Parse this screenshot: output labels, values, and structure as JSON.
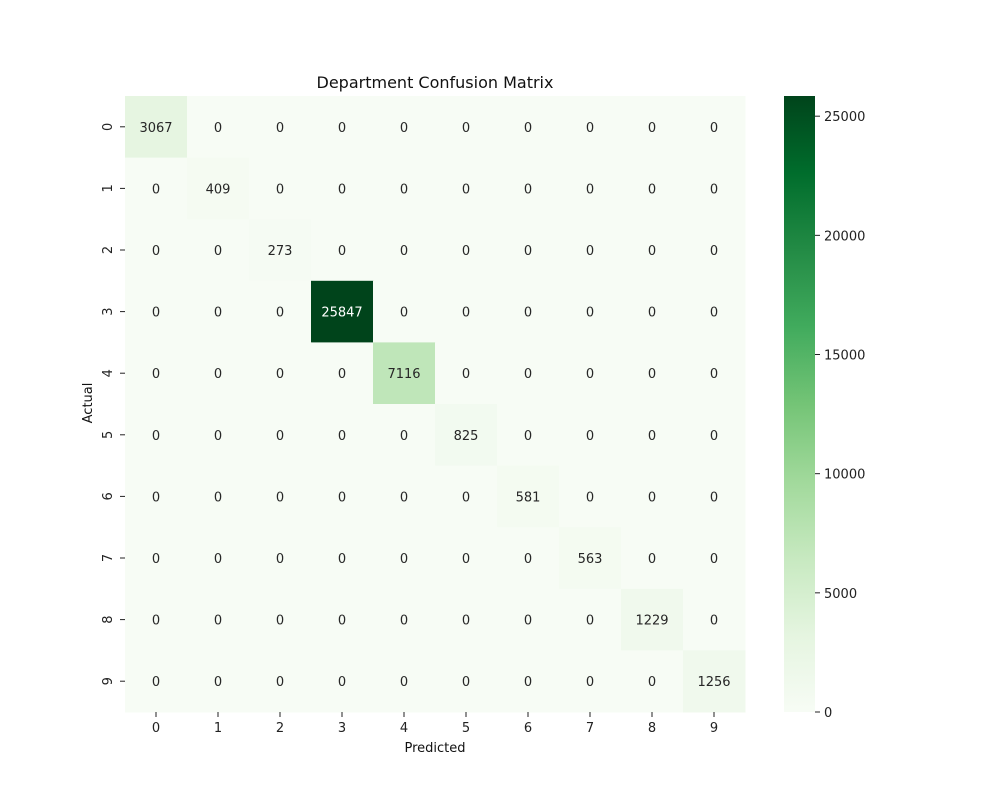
{
  "chart_data": {
    "type": "heatmap",
    "title": "Department Confusion Matrix",
    "xlabel": "Predicted",
    "ylabel": "Actual",
    "x_categories": [
      "0",
      "1",
      "2",
      "3",
      "4",
      "5",
      "6",
      "7",
      "8",
      "9"
    ],
    "y_categories": [
      "0",
      "1",
      "2",
      "3",
      "4",
      "5",
      "6",
      "7",
      "8",
      "9"
    ],
    "matrix": [
      [
        3067,
        0,
        0,
        0,
        0,
        0,
        0,
        0,
        0,
        0
      ],
      [
        0,
        409,
        0,
        0,
        0,
        0,
        0,
        0,
        0,
        0
      ],
      [
        0,
        0,
        273,
        0,
        0,
        0,
        0,
        0,
        0,
        0
      ],
      [
        0,
        0,
        0,
        25847,
        0,
        0,
        0,
        0,
        0,
        0
      ],
      [
        0,
        0,
        0,
        0,
        7116,
        0,
        0,
        0,
        0,
        0
      ],
      [
        0,
        0,
        0,
        0,
        0,
        825,
        0,
        0,
        0,
        0
      ],
      [
        0,
        0,
        0,
        0,
        0,
        0,
        581,
        0,
        0,
        0
      ],
      [
        0,
        0,
        0,
        0,
        0,
        0,
        0,
        563,
        0,
        0
      ],
      [
        0,
        0,
        0,
        0,
        0,
        0,
        0,
        0,
        1229,
        0
      ],
      [
        0,
        0,
        0,
        0,
        0,
        0,
        0,
        0,
        0,
        1256
      ]
    ],
    "colormap": "Greens",
    "color_range": [
      0,
      25847
    ],
    "colorbar_ticks": [
      0,
      5000,
      10000,
      15000,
      20000,
      25000
    ],
    "annotations": true
  }
}
